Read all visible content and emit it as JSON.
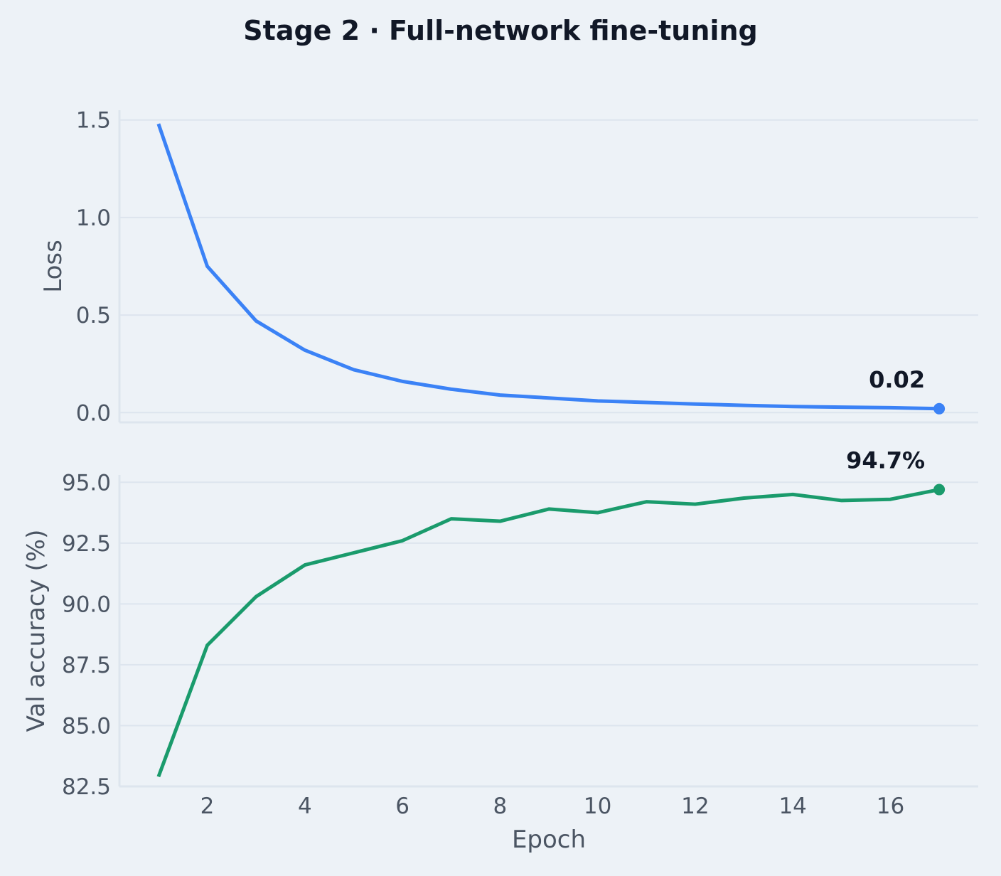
{
  "title": "Stage 2 · Full-network fine-tuning",
  "colors": {
    "loss": "#3b82f6",
    "accuracy": "#1a9b6c",
    "background": "#edf2f7",
    "grid": "#dde5ee",
    "text": "#4b5563",
    "title": "#111827"
  },
  "chart_data": [
    {
      "type": "line",
      "ylabel": "Loss",
      "xlabel": "",
      "x": [
        1,
        2,
        3,
        4,
        5,
        6,
        7,
        8,
        9,
        10,
        11,
        12,
        13,
        14,
        15,
        16,
        17
      ],
      "series": [
        {
          "values": [
            1.48,
            0.75,
            0.47,
            0.32,
            0.22,
            0.16,
            0.12,
            0.09,
            0.075,
            0.06,
            0.052,
            0.044,
            0.037,
            0.031,
            0.028,
            0.025,
            0.02
          ]
        }
      ],
      "xlim": [
        0.2,
        17.8
      ],
      "ylim": [
        -0.05,
        1.55
      ],
      "yticks": [
        0.0,
        0.5,
        1.0,
        1.5
      ],
      "ytick_labels": [
        "0.0",
        "0.5",
        "1.0",
        "1.5"
      ],
      "grid": true,
      "annotation": {
        "x": 17,
        "y": 0.02,
        "text": "0.02"
      }
    },
    {
      "type": "line",
      "ylabel": "Val accuracy (%)",
      "xlabel": "Epoch",
      "x": [
        1,
        2,
        3,
        4,
        5,
        6,
        7,
        8,
        9,
        10,
        11,
        12,
        13,
        14,
        15,
        16,
        17
      ],
      "series": [
        {
          "values": [
            82.9,
            88.3,
            90.3,
            91.6,
            92.1,
            92.6,
            93.5,
            93.4,
            93.9,
            93.75,
            94.2,
            94.1,
            94.35,
            94.5,
            94.25,
            94.3,
            94.7
          ]
        }
      ],
      "xlim": [
        0.2,
        17.8
      ],
      "ylim": [
        82.5,
        95.3
      ],
      "xticks": [
        2,
        4,
        6,
        8,
        10,
        12,
        14,
        16
      ],
      "xtick_labels": [
        "2",
        "4",
        "6",
        "8",
        "10",
        "12",
        "14",
        "16"
      ],
      "yticks": [
        82.5,
        85.0,
        87.5,
        90.0,
        92.5,
        95.0
      ],
      "ytick_labels": [
        "82.5",
        "85.0",
        "87.5",
        "90.0",
        "92.5",
        "95.0"
      ],
      "grid": true,
      "annotation": {
        "x": 17,
        "y": 94.7,
        "text": "94.7%"
      }
    }
  ]
}
